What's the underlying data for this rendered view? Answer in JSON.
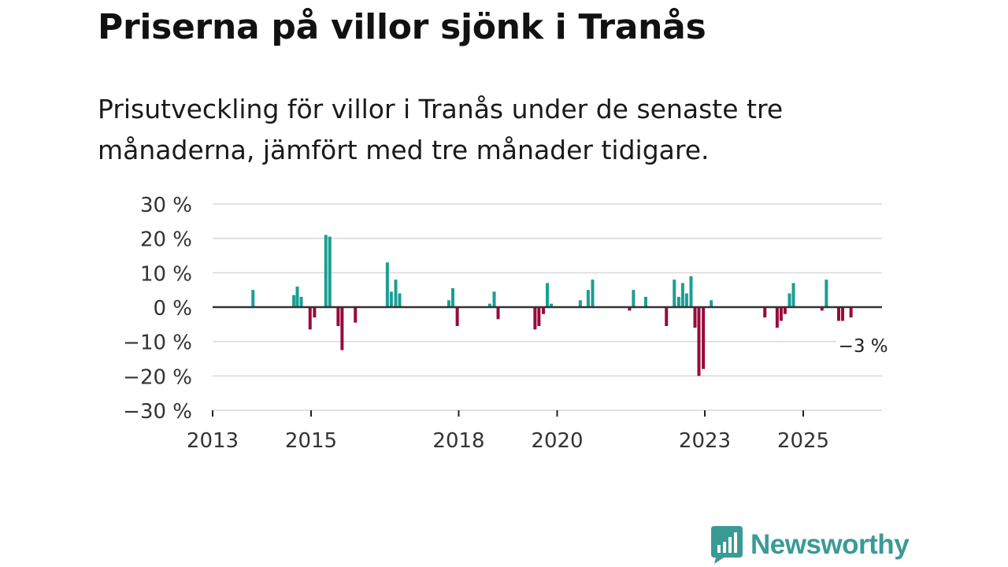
{
  "title": "Priserna på villor sjönk i Tranås",
  "subtitle": "Prisutveckling för villor i Tranås under de senaste tre månaderna, jämfört med tre månader tidigare.",
  "brand": "Newsworthy",
  "colors": {
    "positive": "#1b9e95",
    "negative": "#990a3c",
    "grid": "#d9d9d9",
    "zero": "#333333",
    "brand": "#3a9a96"
  },
  "chart_data": {
    "type": "bar",
    "title": "Priserna på villor sjönk i Tranås",
    "xlabel": "",
    "ylabel": "",
    "ylim": [
      -30,
      30
    ],
    "y_ticks": [
      30,
      20,
      10,
      0,
      -10,
      -20,
      -30
    ],
    "y_tick_labels": [
      "30 %",
      "20 %",
      "10 %",
      "0 %",
      "−10 %",
      "−20 %",
      "−30 %"
    ],
    "xlim": [
      2013.0,
      2026.6
    ],
    "x_ticks": [
      2013,
      2015,
      2018,
      2020,
      2023,
      2025
    ],
    "x_tick_labels": [
      "2013",
      "2015",
      "2018",
      "2020",
      "2023",
      "2025"
    ],
    "annotation": {
      "label": "−3 %",
      "x": 2026.17,
      "y": -3
    },
    "series": [
      {
        "name": "Prisutveckling",
        "points": [
          {
            "x": 2013.82,
            "y": 5
          },
          {
            "x": 2014.65,
            "y": 3.5
          },
          {
            "x": 2014.72,
            "y": 6
          },
          {
            "x": 2014.8,
            "y": 3
          },
          {
            "x": 2014.98,
            "y": -6.5
          },
          {
            "x": 2015.07,
            "y": -3
          },
          {
            "x": 2015.3,
            "y": 21
          },
          {
            "x": 2015.38,
            "y": 20.5
          },
          {
            "x": 2015.55,
            "y": -5.5
          },
          {
            "x": 2015.63,
            "y": -12.5
          },
          {
            "x": 2015.9,
            "y": -4.5
          },
          {
            "x": 2016.55,
            "y": 13
          },
          {
            "x": 2016.63,
            "y": 4.5
          },
          {
            "x": 2016.72,
            "y": 8
          },
          {
            "x": 2016.8,
            "y": 4
          },
          {
            "x": 2017.8,
            "y": 2
          },
          {
            "x": 2017.88,
            "y": 5.5
          },
          {
            "x": 2017.97,
            "y": -5.5
          },
          {
            "x": 2018.63,
            "y": 1
          },
          {
            "x": 2018.72,
            "y": 4.5
          },
          {
            "x": 2018.8,
            "y": -3.5
          },
          {
            "x": 2019.55,
            "y": -6.5
          },
          {
            "x": 2019.63,
            "y": -5.5
          },
          {
            "x": 2019.72,
            "y": -2
          },
          {
            "x": 2019.8,
            "y": 7
          },
          {
            "x": 2019.88,
            "y": 1
          },
          {
            "x": 2020.47,
            "y": 2
          },
          {
            "x": 2020.63,
            "y": 5
          },
          {
            "x": 2020.72,
            "y": 8
          },
          {
            "x": 2021.47,
            "y": -1
          },
          {
            "x": 2021.55,
            "y": 5
          },
          {
            "x": 2021.8,
            "y": 3
          },
          {
            "x": 2022.22,
            "y": -5.5
          },
          {
            "x": 2022.38,
            "y": 8
          },
          {
            "x": 2022.47,
            "y": 3
          },
          {
            "x": 2022.55,
            "y": 7
          },
          {
            "x": 2022.63,
            "y": 4
          },
          {
            "x": 2022.72,
            "y": 9
          },
          {
            "x": 2022.8,
            "y": -6
          },
          {
            "x": 2022.88,
            "y": -20
          },
          {
            "x": 2022.97,
            "y": -18
          },
          {
            "x": 2023.13,
            "y": 2
          },
          {
            "x": 2024.22,
            "y": -3
          },
          {
            "x": 2024.47,
            "y": -6
          },
          {
            "x": 2024.55,
            "y": -4
          },
          {
            "x": 2024.63,
            "y": -2
          },
          {
            "x": 2024.72,
            "y": 4
          },
          {
            "x": 2024.8,
            "y": 7
          },
          {
            "x": 2025.38,
            "y": -1
          },
          {
            "x": 2025.47,
            "y": 8
          },
          {
            "x": 2025.72,
            "y": -4
          },
          {
            "x": 2025.8,
            "y": -4
          },
          {
            "x": 2025.97,
            "y": -3
          }
        ]
      }
    ]
  }
}
